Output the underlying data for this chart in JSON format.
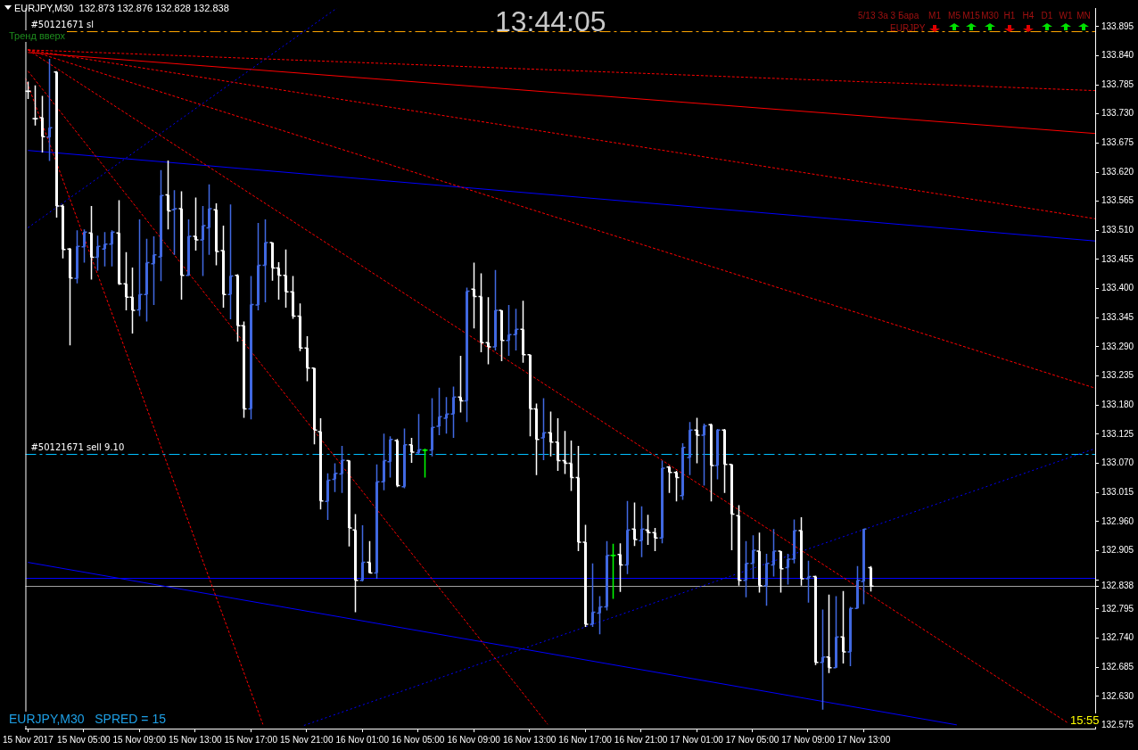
{
  "chart_data": {
    "type": "candlestick",
    "title": "EURJPY,M30  132.873 132.876 132.828 132.838",
    "x": [
      "2017-11-15T01:00",
      "2017-11-15T01:30",
      "2017-11-15T02:00",
      "2017-11-15T02:30",
      "2017-11-15T03:00",
      "2017-11-15T03:30",
      "2017-11-15T04:00",
      "2017-11-15T04:30",
      "2017-11-15T05:00",
      "2017-11-15T05:30",
      "2017-11-15T06:00",
      "2017-11-15T06:30",
      "2017-11-15T07:00",
      "2017-11-15T07:30",
      "2017-11-15T08:00",
      "2017-11-15T08:30",
      "2017-11-15T09:00",
      "2017-11-15T09:30",
      "2017-11-15T10:00",
      "2017-11-15T10:30",
      "2017-11-15T11:00",
      "2017-11-15T11:30",
      "2017-11-15T12:00",
      "2017-11-15T12:30",
      "2017-11-15T13:00",
      "2017-11-15T13:30",
      "2017-11-15T14:00",
      "2017-11-15T14:30",
      "2017-11-15T15:00",
      "2017-11-15T15:30",
      "2017-11-15T16:00",
      "2017-11-15T16:30",
      "2017-11-15T17:00",
      "2017-11-15T17:30",
      "2017-11-15T18:00",
      "2017-11-15T18:30",
      "2017-11-15T19:00",
      "2017-11-15T19:30",
      "2017-11-15T20:00",
      "2017-11-15T20:30",
      "2017-11-15T21:00",
      "2017-11-15T21:30",
      "2017-11-15T22:00",
      "2017-11-15T22:30",
      "2017-11-15T23:00",
      "2017-11-15T23:30",
      "2017-11-16T00:00",
      "2017-11-16T00:30",
      "2017-11-16T01:00",
      "2017-11-16T01:30",
      "2017-11-16T02:00",
      "2017-11-16T02:30",
      "2017-11-16T03:00",
      "2017-11-16T03:30",
      "2017-11-16T04:00",
      "2017-11-16T04:30",
      "2017-11-16T05:00",
      "2017-11-16T05:30",
      "2017-11-16T06:00",
      "2017-11-16T06:30",
      "2017-11-16T07:00",
      "2017-11-16T07:30",
      "2017-11-16T08:00",
      "2017-11-16T08:30",
      "2017-11-16T09:00",
      "2017-11-16T09:30",
      "2017-11-16T10:00",
      "2017-11-16T10:30",
      "2017-11-16T11:00",
      "2017-11-16T11:30",
      "2017-11-16T12:00",
      "2017-11-16T12:30",
      "2017-11-16T13:00",
      "2017-11-16T13:30",
      "2017-11-16T14:00",
      "2017-11-16T14:30",
      "2017-11-16T15:00",
      "2017-11-16T15:30",
      "2017-11-16T16:00",
      "2017-11-16T16:30",
      "2017-11-16T17:00",
      "2017-11-16T17:30",
      "2017-11-16T18:00",
      "2017-11-16T18:30",
      "2017-11-16T19:00",
      "2017-11-16T19:30",
      "2017-11-16T20:00",
      "2017-11-16T20:30",
      "2017-11-16T21:00",
      "2017-11-16T21:30",
      "2017-11-16T22:00",
      "2017-11-16T22:30",
      "2017-11-16T23:00",
      "2017-11-16T23:30",
      "2017-11-17T00:00",
      "2017-11-17T00:30",
      "2017-11-17T01:00",
      "2017-11-17T01:30",
      "2017-11-17T02:00",
      "2017-11-17T02:30",
      "2017-11-17T03:00",
      "2017-11-17T03:30",
      "2017-11-17T04:00",
      "2017-11-17T04:30",
      "2017-11-17T05:00",
      "2017-11-17T05:30",
      "2017-11-17T06:00",
      "2017-11-17T06:30",
      "2017-11-17T07:00",
      "2017-11-17T07:30",
      "2017-11-17T08:00",
      "2017-11-17T08:30",
      "2017-11-17T09:00",
      "2017-11-17T09:30",
      "2017-11-17T10:00",
      "2017-11-17T10:30",
      "2017-11-17T11:00",
      "2017-11-17T11:30",
      "2017-11-17T12:00",
      "2017-11-17T12:30",
      "2017-11-17T13:00",
      "2017-11-17T13:30"
    ],
    "ohlc": [
      [
        133.773,
        133.791,
        133.758,
        133.773
      ],
      [
        133.721,
        133.784,
        133.708,
        133.721
      ],
      [
        133.723,
        133.764,
        133.657,
        133.687
      ],
      [
        133.686,
        133.834,
        133.641,
        133.704
      ],
      [
        133.809,
        133.811,
        133.534,
        133.556
      ],
      [
        133.556,
        133.559,
        133.457,
        133.474
      ],
      [
        133.475,
        133.477,
        133.293,
        133.42
      ],
      [
        133.419,
        133.51,
        133.41,
        133.48
      ],
      [
        133.479,
        133.512,
        133.449,
        133.507
      ],
      [
        133.505,
        133.556,
        133.417,
        133.459
      ],
      [
        133.459,
        133.5,
        133.434,
        133.48
      ],
      [
        133.475,
        133.507,
        133.442,
        133.484
      ],
      [
        133.484,
        133.51,
        133.442,
        133.507
      ],
      [
        133.505,
        133.567,
        133.407,
        133.409
      ],
      [
        133.409,
        133.469,
        133.359,
        133.384
      ],
      [
        133.384,
        133.44,
        133.315,
        133.359
      ],
      [
        133.36,
        133.531,
        133.348,
        133.389
      ],
      [
        133.389,
        133.494,
        133.338,
        133.449
      ],
      [
        133.447,
        133.499,
        133.369,
        133.464
      ],
      [
        133.46,
        133.624,
        133.414,
        133.576
      ],
      [
        133.577,
        133.642,
        133.512,
        133.547
      ],
      [
        133.549,
        133.586,
        133.464,
        133.551
      ],
      [
        133.551,
        133.584,
        133.379,
        133.425
      ],
      [
        133.425,
        133.531,
        133.424,
        133.499
      ],
      [
        133.499,
        133.572,
        133.472,
        133.492
      ],
      [
        133.492,
        133.556,
        133.424,
        133.519
      ],
      [
        133.515,
        133.597,
        133.464,
        133.551
      ],
      [
        133.549,
        133.561,
        133.444,
        133.47
      ],
      [
        133.472,
        133.519,
        133.364,
        133.389
      ],
      [
        133.389,
        133.559,
        133.342,
        133.424
      ],
      [
        133.425,
        133.427,
        133.3,
        133.33
      ],
      [
        133.33,
        133.338,
        133.156,
        133.173
      ],
      [
        133.173,
        133.424,
        133.153,
        133.37
      ],
      [
        133.369,
        133.524,
        133.359,
        133.444
      ],
      [
        133.444,
        133.531,
        133.374,
        133.487
      ],
      [
        133.487,
        133.487,
        133.415,
        133.439
      ],
      [
        133.439,
        133.45,
        133.379,
        133.425
      ],
      [
        133.425,
        133.474,
        133.364,
        133.394
      ],
      [
        133.394,
        133.424,
        133.343,
        133.348
      ],
      [
        133.348,
        133.372,
        133.282,
        133.288
      ],
      [
        133.288,
        133.31,
        133.225,
        133.25
      ],
      [
        133.25,
        133.25,
        133.106,
        133.133
      ],
      [
        133.13,
        133.155,
        132.983,
        132.999
      ],
      [
        132.998,
        133.051,
        132.963,
        133.038
      ],
      [
        133.04,
        133.07,
        133.016,
        133.051
      ],
      [
        133.05,
        133.103,
        133.014,
        133.076
      ],
      [
        133.075,
        133.076,
        132.913,
        132.948
      ],
      [
        132.944,
        132.974,
        132.789,
        132.849
      ],
      [
        132.849,
        132.953,
        132.847,
        132.883
      ],
      [
        132.883,
        132.923,
        132.863,
        132.863
      ],
      [
        132.863,
        133.068,
        132.852,
        133.035
      ],
      [
        133.035,
        133.126,
        133.019,
        133.075
      ],
      [
        133.073,
        133.121,
        133.043,
        133.115
      ],
      [
        133.113,
        133.116,
        133.025,
        133.028
      ],
      [
        133.026,
        133.136,
        133.023,
        133.105
      ],
      [
        133.105,
        133.118,
        133.071,
        133.091
      ],
      [
        133.09,
        133.163,
        133.088,
        133.096
      ],
      [
        133.095,
        133.098,
        133.043,
        133.095
      ],
      [
        133.095,
        133.193,
        133.083,
        133.138
      ],
      [
        133.14,
        133.213,
        133.123,
        133.158
      ],
      [
        133.155,
        133.195,
        133.126,
        133.163
      ],
      [
        133.163,
        133.215,
        133.118,
        133.195
      ],
      [
        133.195,
        133.273,
        133.166,
        133.188
      ],
      [
        133.188,
        133.402,
        133.148,
        133.395
      ],
      [
        133.399,
        133.449,
        133.325,
        133.385
      ],
      [
        133.385,
        133.429,
        133.28,
        133.298
      ],
      [
        133.298,
        133.384,
        133.257,
        133.29
      ],
      [
        133.29,
        133.435,
        133.283,
        133.359
      ],
      [
        133.359,
        133.359,
        133.263,
        133.302
      ],
      [
        133.302,
        133.369,
        133.273,
        133.313
      ],
      [
        133.313,
        133.362,
        133.283,
        133.323
      ],
      [
        133.323,
        133.377,
        133.26,
        133.275
      ],
      [
        133.275,
        133.275,
        133.121,
        133.173
      ],
      [
        133.173,
        133.183,
        133.048,
        133.115
      ],
      [
        133.118,
        133.193,
        133.076,
        133.128
      ],
      [
        133.128,
        133.168,
        133.083,
        133.11
      ],
      [
        133.11,
        133.155,
        133.056,
        133.075
      ],
      [
        133.075,
        133.131,
        133.05,
        133.07
      ],
      [
        133.07,
        133.113,
        133.018,
        133.043
      ],
      [
        133.043,
        133.103,
        132.904,
        132.921
      ],
      [
        132.921,
        132.954,
        132.761,
        132.766
      ],
      [
        132.766,
        132.881,
        132.761,
        132.789
      ],
      [
        132.787,
        132.819,
        132.747,
        132.799
      ],
      [
        132.799,
        132.923,
        132.792,
        132.896
      ],
      [
        132.896,
        132.918,
        132.814,
        132.896
      ],
      [
        132.898,
        132.919,
        132.827,
        132.878
      ],
      [
        132.878,
        132.999,
        132.861,
        132.944
      ],
      [
        132.946,
        132.996,
        132.914,
        132.926
      ],
      [
        132.924,
        132.989,
        132.893,
        132.946
      ],
      [
        132.944,
        132.973,
        132.916,
        132.939
      ],
      [
        132.939,
        132.948,
        132.904,
        132.929
      ],
      [
        132.929,
        133.075,
        132.919,
        133.061
      ],
      [
        133.063,
        133.065,
        133.014,
        133.053
      ],
      [
        133.053,
        133.056,
        132.998,
        133.043
      ],
      [
        133.009,
        133.108,
        133.001,
        133.1
      ],
      [
        133.081,
        133.148,
        133.048,
        133.133
      ],
      [
        133.133,
        133.156,
        133.07,
        133.123
      ],
      [
        133.123,
        133.145,
        133.028,
        133.141
      ],
      [
        133.143,
        133.145,
        132.998,
        133.066
      ],
      [
        133.066,
        133.135,
        133.04,
        133.133
      ],
      [
        133.133,
        133.135,
        133.014,
        133.068
      ],
      [
        133.068,
        133.068,
        132.906,
        132.974
      ],
      [
        132.971,
        132.991,
        132.839,
        132.849
      ],
      [
        132.849,
        132.923,
        132.817,
        132.881
      ],
      [
        132.881,
        132.934,
        132.852,
        132.906
      ],
      [
        132.904,
        132.939,
        132.826,
        132.839
      ],
      [
        132.839,
        132.899,
        132.801,
        132.881
      ],
      [
        132.878,
        132.946,
        132.856,
        132.904
      ],
      [
        132.904,
        132.904,
        132.826,
        132.871
      ],
      [
        132.873,
        132.899,
        132.841,
        132.889
      ],
      [
        132.889,
        132.964,
        132.881,
        132.943
      ],
      [
        132.943,
        132.968,
        132.839,
        132.852
      ],
      [
        132.852,
        132.886,
        132.807,
        132.856
      ],
      [
        132.856,
        132.858,
        132.689,
        132.694
      ],
      [
        132.694,
        132.794,
        132.605,
        132.704
      ],
      [
        132.704,
        132.822,
        132.674,
        132.684
      ],
      [
        132.684,
        132.819,
        132.684,
        132.742
      ],
      [
        132.742,
        132.829,
        132.692,
        132.714
      ],
      [
        132.714,
        132.799,
        132.687,
        132.796
      ],
      [
        132.796,
        132.876,
        132.796,
        132.849
      ],
      [
        132.847,
        132.946,
        132.804,
        132.946
      ],
      [
        132.873,
        132.876,
        132.828,
        132.838
      ]
    ],
    "colors": [
      "#ffffff",
      "#ffffff",
      "#ffffff",
      "#4169e1",
      "#ffffff",
      "#ffffff",
      "#ffffff",
      "#4169e1",
      "#4169e1",
      "#ffffff",
      "#4169e1",
      "#4169e1",
      "#4169e1",
      "#ffffff",
      "#ffffff",
      "#ffffff",
      "#4169e1",
      "#4169e1",
      "#4169e1",
      "#4169e1",
      "#ffffff",
      "#4169e1",
      "#ffffff",
      "#4169e1",
      "#ffffff",
      "#4169e1",
      "#4169e1",
      "#ffffff",
      "#ffffff",
      "#4169e1",
      "#ffffff",
      "#ffffff",
      "#4169e1",
      "#4169e1",
      "#4169e1",
      "#ffffff",
      "#ffffff",
      "#ffffff",
      "#ffffff",
      "#ffffff",
      "#ffffff",
      "#ffffff",
      "#ffffff",
      "#4169e1",
      "#4169e1",
      "#4169e1",
      "#ffffff",
      "#ffffff",
      "#4169e1",
      "#ffffff",
      "#4169e1",
      "#4169e1",
      "#4169e1",
      "#ffffff",
      "#4169e1",
      "#ffffff",
      "#4169e1",
      "#00ff00",
      "#4169e1",
      "#4169e1",
      "#4169e1",
      "#4169e1",
      "#ffffff",
      "#4169e1",
      "#ffffff",
      "#ffffff",
      "#ffffff",
      "#4169e1",
      "#ffffff",
      "#4169e1",
      "#4169e1",
      "#ffffff",
      "#ffffff",
      "#ffffff",
      "#4169e1",
      "#ffffff",
      "#ffffff",
      "#ffffff",
      "#ffffff",
      "#ffffff",
      "#ffffff",
      "#4169e1",
      "#4169e1",
      "#4169e1",
      "#00ff00",
      "#ffffff",
      "#4169e1",
      "#ffffff",
      "#4169e1",
      "#ffffff",
      "#ffffff",
      "#4169e1",
      "#ffffff",
      "#ffffff",
      "#4169e1",
      "#4169e1",
      "#ffffff",
      "#4169e1",
      "#ffffff",
      "#4169e1",
      "#ffffff",
      "#ffffff",
      "#ffffff",
      "#4169e1",
      "#4169e1",
      "#ffffff",
      "#4169e1",
      "#4169e1",
      "#ffffff",
      "#4169e1",
      "#4169e1",
      "#ffffff",
      "#4169e1",
      "#ffffff",
      "#4169e1",
      "#ffffff",
      "#4169e1",
      "#ffffff",
      "#4169e1",
      "#4169e1",
      "#4169e1",
      "#ffffff"
    ],
    "series": [
      {
        "type": "line",
        "color": "#ff0000",
        "line_style": "dashed",
        "x": [
          "2017-11-15T01:00",
          "2017-11-18T05:37"
        ],
        "values": [
          133.851,
          133.774
        ]
      },
      {
        "type": "line",
        "color": "#ff0000",
        "line_style": "solid",
        "x": [
          "2017-11-15T01:00",
          "2017-11-18T05:37"
        ],
        "values": [
          133.846,
          133.693
        ]
      },
      {
        "type": "line",
        "color": "#ff0000",
        "line_style": "dashed",
        "x": [
          "2017-11-15T01:00",
          "2017-11-18T05:37"
        ],
        "values": [
          133.851,
          133.532
        ]
      },
      {
        "type": "line",
        "color": "#ff0000",
        "line_style": "dashed",
        "x": [
          "2017-11-15T01:00",
          "2017-11-18T05:37"
        ],
        "values": [
          133.851,
          133.212
        ]
      },
      {
        "type": "line",
        "color": "#ff0000",
        "line_style": "dashed",
        "x": [
          "2017-11-15T01:00",
          "2017-11-18T03:49"
        ],
        "values": [
          133.851,
          132.577
        ]
      },
      {
        "type": "line",
        "color": "#ff0000",
        "line_style": "dashed",
        "x": [
          "2017-11-15T00:49",
          "2017-11-15T17:52"
        ],
        "values": [
          133.798,
          132.577
        ]
      },
      {
        "type": "line",
        "color": "#ff0000",
        "line_style": "dashed",
        "x": [
          "2017-11-15T01:00",
          "2017-11-16T14:19"
        ],
        "values": [
          133.811,
          132.577
        ]
      },
      {
        "type": "line",
        "color": "#0000ff",
        "line_style": "solid",
        "x": [
          "2017-11-15T01:00",
          "2017-11-18T05:37"
        ],
        "values": [
          133.661,
          133.49
        ]
      },
      {
        "type": "line",
        "color": "#0000ff",
        "line_style": "solid",
        "x": [
          "2017-11-15T01:00",
          "2017-11-17T19:41"
        ],
        "values": [
          132.883,
          132.576
        ]
      },
      {
        "type": "line",
        "color": "#0000ff",
        "line_style": "dotted",
        "x": [
          "2017-11-15T01:00",
          "2017-11-15T23:11"
        ],
        "values": [
          133.515,
          133.93
        ]
      },
      {
        "type": "line",
        "color": "#0000ff",
        "line_style": "dotted",
        "x": [
          "2017-11-15T20:49",
          "2017-11-18T05:37"
        ],
        "values": [
          132.575,
          133.098
        ]
      }
    ],
    "ref_lines": [
      {
        "axis": "y",
        "value": 133.886,
        "label": "#50121671 sl",
        "color": "#ffa500",
        "line_style": "dashed"
      },
      {
        "axis": "y",
        "value": 133.088,
        "label": "#50121671 sell 9.10",
        "color": "#00bfff",
        "line_style": "dashed"
      },
      {
        "axis": "y",
        "value": 132.853,
        "color": "#0000ff",
        "line_style": "solid"
      },
      {
        "axis": "y",
        "value": 132.838,
        "color": "#a0a0a0",
        "line_style": "solid"
      }
    ],
    "xlim": [
      "2017-11-15T00:49",
      "2017-11-18T05:37"
    ],
    "xticks": [
      {
        "value": "2017-11-15T01:00",
        "label": "15 Nov 2017"
      },
      {
        "value": "2017-11-15T05:00",
        "label": "15 Nov 05:00"
      },
      {
        "value": "2017-11-15T09:00",
        "label": "15 Nov 09:00"
      },
      {
        "value": "2017-11-15T13:00",
        "label": "15 Nov 13:00"
      },
      {
        "value": "2017-11-15T17:00",
        "label": "15 Nov 17:00"
      },
      {
        "value": "2017-11-15T21:00",
        "label": "15 Nov 21:00"
      },
      {
        "value": "2017-11-16T01:00",
        "label": "16 Nov 01:00"
      },
      {
        "value": "2017-11-16T05:00",
        "label": "16 Nov 05:00"
      },
      {
        "value": "2017-11-16T09:00",
        "label": "16 Nov 09:00"
      },
      {
        "value": "2017-11-16T13:00",
        "label": "16 Nov 13:00"
      },
      {
        "value": "2017-11-16T17:00",
        "label": "16 Nov 17:00"
      },
      {
        "value": "2017-11-16T21:00",
        "label": "16 Nov 21:00"
      },
      {
        "value": "2017-11-17T01:00",
        "label": "17 Nov 01:00"
      },
      {
        "value": "2017-11-17T05:00",
        "label": "17 Nov 05:00"
      },
      {
        "value": "2017-11-17T09:00",
        "label": "17 Nov 09:00"
      },
      {
        "value": "2017-11-17T13:00",
        "label": "17 Nov 13:00"
      }
    ],
    "ylim": [
      132.569,
      133.93
    ],
    "yticks": [
      133.895,
      {
        "value": 133.84,
        "label": "133.840"
      },
      133.785,
      {
        "value": 133.73,
        "label": "133.730"
      },
      133.675,
      {
        "value": 133.62,
        "label": "133.620"
      },
      133.565,
      {
        "value": 133.51,
        "label": "133.510"
      },
      133.455,
      {
        "value": 133.4,
        "label": "133.400"
      },
      133.345,
      {
        "value": 133.29,
        "label": "133.290"
      },
      133.235,
      {
        "value": 133.18,
        "label": "133.180"
      },
      133.125,
      {
        "value": 133.07,
        "label": "133.070"
      },
      133.015,
      {
        "value": 132.96,
        "label": "132.960"
      },
      132.905,
      {
        "value": 132.85,
        "label": null
      },
      132.838,
      132.795,
      {
        "value": 132.74,
        "label": "132.740"
      },
      132.685,
      {
        "value": 132.63,
        "label": "132.630"
      },
      132.575
    ],
    "annotations": [
      "Тренд вверх",
      "13:44:05",
      "5/13 За 3 Бара",
      "M1",
      "M5",
      "M15",
      "M30",
      "H1",
      "H4",
      "D1",
      "W1",
      "MN",
      "EURJPY",
      "EURJPY,M30   SPRED = 15",
      "15:55"
    ]
  }
}
